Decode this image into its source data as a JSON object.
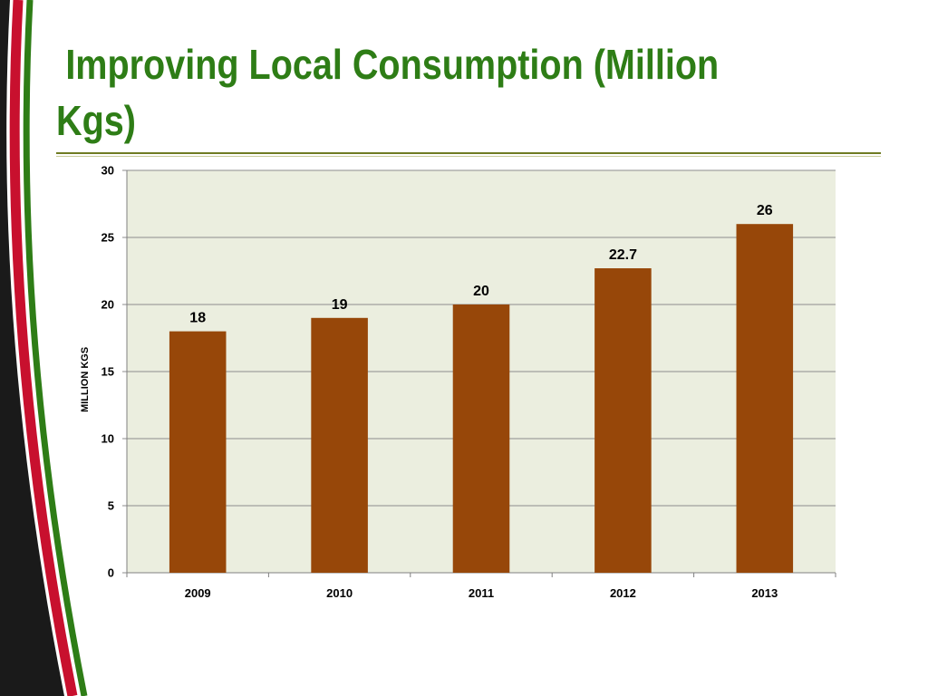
{
  "title": "Improving Local Consumption (Million Kgs)",
  "theme": {
    "title_color": "#2e7d16",
    "bar_color": "#974709",
    "plot_bg": "#ebeedf",
    "grid_color": "#8c8c8c",
    "stripe_colors": [
      "#1a1a1a",
      "#c8102e",
      "#2e7d16"
    ]
  },
  "chart_data": {
    "type": "bar",
    "categories": [
      "2009",
      "2010",
      "2011",
      "2012",
      "2013"
    ],
    "values": [
      18,
      19,
      20,
      22.7,
      26
    ],
    "data_labels": [
      "18",
      "19",
      "20",
      "22.7",
      "26"
    ],
    "title": "",
    "xlabel": "",
    "ylabel": "MILLION KGS",
    "ylim": [
      0,
      30
    ],
    "yticks": [
      0,
      5,
      10,
      15,
      20,
      25,
      30
    ],
    "grid": true,
    "legend": "none"
  }
}
